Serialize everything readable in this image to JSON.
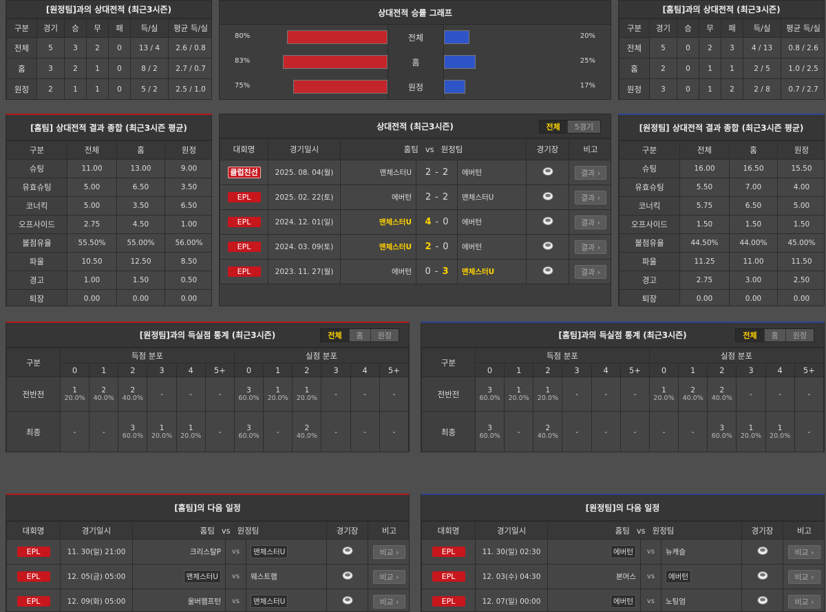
{
  "h2h_away": {
    "title": "[원정팀]과의 상대전적 (최근3시즌)",
    "headers": [
      "구분",
      "경기",
      "승",
      "무",
      "패",
      "득/실",
      "평균 득/실"
    ],
    "rows": [
      [
        "전체",
        5,
        3,
        2,
        0,
        "13 / 4",
        "2.6 / 0.8"
      ],
      [
        "홈",
        3,
        2,
        1,
        0,
        "8 / 2",
        "2.7 / 0.7"
      ],
      [
        "원정",
        2,
        1,
        1,
        0,
        "5 / 2",
        "2.5 / 1.0"
      ]
    ]
  },
  "win_graph": {
    "title": "상대전적 승률 그래프",
    "rows": [
      {
        "label": "전체",
        "home": 80,
        "home_label": "80%",
        "away": 20,
        "away_label": "20%"
      },
      {
        "label": "홈",
        "home": 83,
        "home_label": "83%",
        "away": 25,
        "away_label": "25%"
      },
      {
        "label": "원정",
        "home": 75,
        "home_label": "75%",
        "away": 17,
        "away_label": "17%"
      }
    ]
  },
  "h2h_home": {
    "title": "[홈팀]과의 상대전적 (최근3시즌)",
    "headers": [
      "구분",
      "경기",
      "승",
      "무",
      "패",
      "득/실",
      "평균 득/실"
    ],
    "rows": [
      [
        "전체",
        5,
        0,
        2,
        3,
        "4 / 13",
        "0.8 / 2.6"
      ],
      [
        "홈",
        2,
        0,
        1,
        1,
        "2 / 5",
        "1.0 / 2.5"
      ],
      [
        "원정",
        3,
        0,
        1,
        2,
        "2 / 8",
        "0.7 / 2.7"
      ]
    ]
  },
  "summary_home": {
    "title": "[홈팀] 상대전적 결과 종합 (최근3시즌 평균)",
    "headers": [
      "구분",
      "전체",
      "홈",
      "원정"
    ],
    "rows": [
      [
        "슈팅",
        "11.00",
        "13.00",
        "9.00"
      ],
      [
        "유효슈팅",
        "5.00",
        "6.50",
        "3.50"
      ],
      [
        "코너킥",
        "5.00",
        "3.50",
        "6.50"
      ],
      [
        "오프사이드",
        "2.75",
        "4.50",
        "1.00"
      ],
      [
        "볼점유율",
        "55.50%",
        "55.00%",
        "56.00%"
      ],
      [
        "파울",
        "10.50",
        "12.50",
        "8.50"
      ],
      [
        "경고",
        "1.00",
        "1.50",
        "0.50"
      ],
      [
        "퇴장",
        "0.00",
        "0.00",
        "0.00"
      ]
    ]
  },
  "matches": {
    "title": "상대전적 (최근3시즌)",
    "tabs": [
      "전체",
      "5경기"
    ],
    "headers": [
      "대회명",
      "경기일시",
      "홈팀",
      "vs",
      "원정팀",
      "경기장",
      "비고"
    ],
    "score_separator": "-",
    "button": "결과",
    "rows": [
      {
        "league": "클럽친선",
        "date": "2025. 08. 04(월)",
        "home": "맨체스터U",
        "home_score": 2,
        "away_score": 2,
        "away": "에버턴"
      },
      {
        "league": "EPL",
        "date": "2025. 02. 22(토)",
        "home": "에버턴",
        "home_score": 2,
        "away_score": 2,
        "away": "맨체스터U"
      },
      {
        "league": "EPL",
        "date": "2024. 12. 01(일)",
        "home": "맨체스터U",
        "home_score": 4,
        "away_score": 0,
        "away": "에버턴"
      },
      {
        "league": "EPL",
        "date": "2024. 03. 09(토)",
        "home": "맨체스터U",
        "home_score": 2,
        "away_score": 0,
        "away": "에버턴"
      },
      {
        "league": "EPL",
        "date": "2023. 11. 27(월)",
        "home": "에버턴",
        "home_score": 0,
        "away_score": 3,
        "away": "맨체스터U"
      }
    ]
  },
  "summary_away": {
    "title": "[원정팀] 상대전적 결과 종합 (최근3시즌 평균)",
    "headers": [
      "구분",
      "전체",
      "홈",
      "원정"
    ],
    "rows": [
      [
        "슈팅",
        "16.00",
        "16.50",
        "15.50"
      ],
      [
        "유효슈팅",
        "5.50",
        "7.00",
        "4.00"
      ],
      [
        "코너킥",
        "5.75",
        "6.50",
        "5.00"
      ],
      [
        "오프사이드",
        "1.50",
        "1.50",
        "1.50"
      ],
      [
        "볼점유율",
        "44.50%",
        "44.00%",
        "45.00%"
      ],
      [
        "파울",
        "11.25",
        "11.00",
        "11.50"
      ],
      [
        "경고",
        "2.75",
        "3.00",
        "2.50"
      ],
      [
        "퇴장",
        "0.00",
        "0.00",
        "0.00"
      ]
    ]
  },
  "goals_away": {
    "title": "[원정팀]과의 득실점 통계 (최근3시즌)",
    "tabs": [
      "전체",
      "홈",
      "원정"
    ],
    "row_header": "구분",
    "groups": [
      "득점 분포",
      "실점 분포"
    ],
    "columns": [
      "0",
      "1",
      "2",
      "3",
      "4",
      "5+"
    ],
    "rows": [
      {
        "label": "전반전",
        "cells": [
          [
            "1",
            "20.0%"
          ],
          [
            "2",
            "40.0%"
          ],
          [
            "2",
            "40.0%"
          ],
          "-",
          "-",
          "-",
          [
            "3",
            "60.0%"
          ],
          [
            "1",
            "20.0%"
          ],
          [
            "1",
            "20.0%"
          ],
          "-",
          "-",
          "-"
        ]
      },
      {
        "label": "최종",
        "cells": [
          "-",
          "-",
          [
            "3",
            "60.0%"
          ],
          [
            "1",
            "20.0%"
          ],
          [
            "1",
            "20.0%"
          ],
          "-",
          [
            "3",
            "60.0%"
          ],
          "-",
          [
            "2",
            "40.0%"
          ],
          "-",
          "-",
          "-"
        ]
      }
    ]
  },
  "goals_home": {
    "title": "[홈팀]과의 득실점 통계 (최근3시즌)",
    "tabs": [
      "전체",
      "홈",
      "원정"
    ],
    "row_header": "구분",
    "groups": [
      "득점 분포",
      "실점 분포"
    ],
    "columns": [
      "0",
      "1",
      "2",
      "3",
      "4",
      "5+"
    ],
    "rows": [
      {
        "label": "전반전",
        "cells": [
          [
            "3",
            "60.0%"
          ],
          [
            "1",
            "20.0%"
          ],
          [
            "1",
            "20.0%"
          ],
          "-",
          "-",
          "-",
          [
            "1",
            "20.0%"
          ],
          [
            "2",
            "40.0%"
          ],
          [
            "2",
            "40.0%"
          ],
          "-",
          "-",
          "-"
        ]
      },
      {
        "label": "최종",
        "cells": [
          [
            "3",
            "60.0%"
          ],
          "-",
          [
            "2",
            "40.0%"
          ],
          "-",
          "-",
          "-",
          "-",
          "-",
          [
            "3",
            "60.0%"
          ],
          [
            "1",
            "20.0%"
          ],
          [
            "1",
            "20.0%"
          ],
          "-"
        ]
      }
    ]
  },
  "schedule_home": {
    "title": "[홈팀]의 다음 일정",
    "headers": [
      "대회명",
      "경기일시",
      "홈팀",
      "vs",
      "원정팀",
      "경기장",
      "비고"
    ],
    "vs": "vs",
    "button": "비교",
    "rows": [
      {
        "league": "EPL",
        "date": "11. 30(일) 21:00",
        "home": "크리스탈P",
        "away": "맨체스터U",
        "focus": "away"
      },
      {
        "league": "EPL",
        "date": "12. 05(금) 05:00",
        "home": "맨체스터U",
        "away": "웨스트햄",
        "focus": "home"
      },
      {
        "league": "EPL",
        "date": "12. 09(화) 05:00",
        "home": "울버햄프턴",
        "away": "맨체스터U",
        "focus": "away"
      }
    ]
  },
  "schedule_away": {
    "title": "[원정팀]의 다음 일정",
    "headers": [
      "대회명",
      "경기일시",
      "홈팀",
      "vs",
      "원정팀",
      "경기장",
      "비고"
    ],
    "vs": "vs",
    "button": "비교",
    "rows": [
      {
        "league": "EPL",
        "date": "11. 30(일) 02:30",
        "home": "에버턴",
        "away": "뉴캐슬",
        "focus": "home"
      },
      {
        "league": "EPL",
        "date": "12. 03(수) 04:30",
        "home": "본머스",
        "away": "에버턴",
        "focus": "away"
      },
      {
        "league": "EPL",
        "date": "12. 07(일) 00:00",
        "home": "에버턴",
        "away": "노팅엄",
        "focus": "home"
      }
    ]
  }
}
